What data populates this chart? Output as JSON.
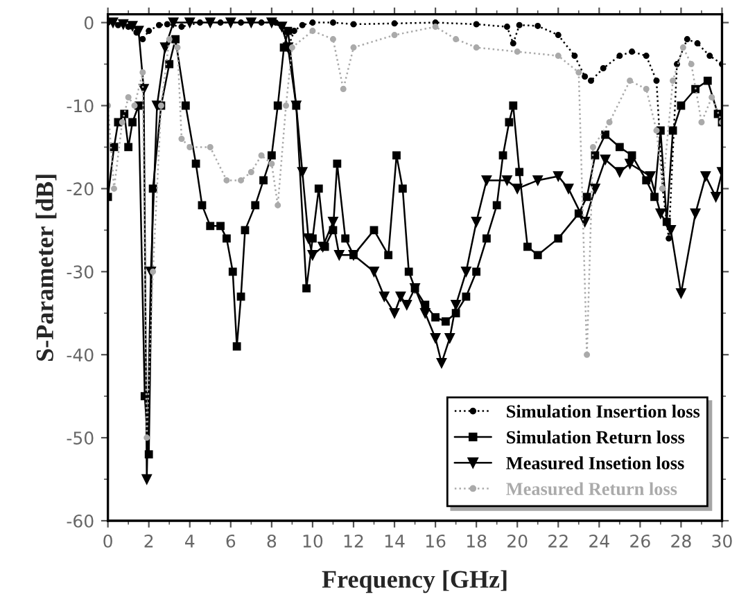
{
  "chart_data": {
    "type": "line",
    "xlabel": "Frequency [GHz]",
    "ylabel": "S-Parameter [dB]",
    "xlim": [
      0,
      30
    ],
    "xticks": [
      0,
      2,
      4,
      6,
      8,
      10,
      12,
      14,
      16,
      18,
      20,
      22,
      24,
      26,
      28,
      30
    ],
    "ylim": [
      -60,
      1
    ],
    "yticks": [
      -60,
      -50,
      -40,
      -30,
      -20,
      -10,
      0
    ],
    "grid": false,
    "legend": "bottom right",
    "line_style": "solid",
    "series": [
      {
        "name": "Simulation Insertion loss",
        "color": "#000000",
        "marker": "circle",
        "line_style": "dotted",
        "x": [
          0,
          0.5,
          1,
          1.4,
          1.7,
          2,
          2.5,
          2.9,
          3.6,
          4.5,
          5.5,
          6.5,
          7.5,
          8.2,
          8.5,
          8.8,
          9.1,
          9.5,
          10,
          11,
          12,
          14,
          16,
          18,
          19.5,
          19.8,
          20.1,
          21,
          22,
          22.8,
          23.3,
          23.6,
          24.2,
          25,
          25.6,
          26.3,
          26.8,
          27.1,
          27.4,
          27.8,
          28.3,
          28.8,
          29.4,
          30
        ],
        "values": [
          0,
          -0.3,
          -0.5,
          -1.2,
          -2,
          -1,
          -0.3,
          -0.2,
          -0.5,
          0,
          0,
          0,
          0,
          0,
          -0.5,
          -3,
          -1,
          -0.3,
          0,
          0,
          -0.2,
          -0.1,
          0,
          -0.2,
          -0.5,
          -2.5,
          -0.3,
          -0.4,
          -1.5,
          -4,
          -6.5,
          -7,
          -5.5,
          -4,
          -3.5,
          -4,
          -7,
          -20,
          -26,
          -5,
          -2,
          -2.5,
          -4,
          -5
        ]
      },
      {
        "name": "Simulation Return loss",
        "color": "#000000",
        "marker": "square",
        "x": [
          0,
          0.3,
          0.5,
          0.8,
          1,
          1.2,
          1.5,
          1.8,
          2,
          2.2,
          2.6,
          3,
          3.3,
          3.8,
          4.3,
          4.6,
          5,
          5.5,
          5.8,
          6.1,
          6.3,
          6.5,
          6.7,
          7.2,
          7.6,
          8,
          8.3,
          8.6,
          8.8,
          9.2,
          9.7,
          10,
          10.3,
          10.6,
          11,
          11.2,
          11.6,
          12,
          13,
          13.7,
          14.1,
          14.4,
          14.7,
          15,
          15.5,
          16,
          16.5,
          17,
          17.5,
          18,
          18.5,
          19,
          19.3,
          19.6,
          19.8,
          20.1,
          20.5,
          21,
          22,
          23,
          23.4,
          23.8,
          24.3,
          25,
          25.6,
          26.3,
          26.7,
          27,
          27.3,
          27.6,
          28,
          28.7,
          29.3,
          29.8,
          30
        ],
        "values": [
          -21,
          -15,
          -12,
          -11,
          -15,
          -12,
          -10,
          -45,
          -52,
          -20,
          -10,
          -5,
          -2,
          -10,
          -17,
          -22,
          -24.5,
          -24.5,
          -26,
          -30,
          -39,
          -33,
          -25,
          -22,
          -19,
          -16,
          -10,
          -3,
          -1,
          -10,
          -32,
          -26,
          -20,
          -27,
          -25,
          -17,
          -26,
          -28,
          -25,
          -28,
          -16,
          -20,
          -30,
          -32,
          -34,
          -35.5,
          -36,
          -35,
          -33,
          -30,
          -26,
          -22,
          -16,
          -12,
          -10,
          -18,
          -27,
          -28,
          -26,
          -23,
          -21,
          -16,
          -13.5,
          -15,
          -16,
          -19,
          -21,
          -13,
          -24,
          -13,
          -10,
          -8,
          -7,
          -11,
          -12
        ]
      },
      {
        "name": "Measured Insetion loss",
        "color": "#000000",
        "marker": "triangle",
        "x": [
          0.25,
          0.75,
          1.2,
          1.5,
          1.75,
          1.9,
          2.1,
          2.4,
          2.8,
          3.2,
          4,
          5,
          6,
          7,
          8,
          8.5,
          8.8,
          9.2,
          9.5,
          9.8,
          10,
          10.5,
          11,
          11.3,
          12,
          13,
          13.5,
          14,
          14.3,
          14.6,
          15,
          15.5,
          16,
          16.3,
          16.7,
          17,
          17.5,
          18,
          18.5,
          19.5,
          20,
          21,
          22,
          22.5,
          23.3,
          23.8,
          24.3,
          25,
          25.5,
          26.5,
          27,
          27.5,
          28,
          28.7,
          29.2,
          29.7,
          30
        ],
        "values": [
          0,
          -0.2,
          -0.4,
          -1,
          -8,
          -55,
          -30,
          -10,
          -3,
          0,
          0,
          0,
          0,
          0,
          0,
          -0.5,
          -3,
          -10,
          -18,
          -26,
          -28,
          -27,
          -24,
          -28,
          -28,
          -30,
          -33,
          -35,
          -33,
          -34,
          -32,
          -35,
          -38,
          -41,
          -38,
          -34,
          -30,
          -24,
          -19,
          -19,
          -20,
          -19,
          -18.5,
          -20,
          -24,
          -20,
          -16.5,
          -18,
          -17,
          -18.5,
          -23,
          -25,
          -32.6,
          -23,
          -18.5,
          -21,
          -18
        ]
      },
      {
        "name": "Measured Return loss",
        "color": "#aaaaaa",
        "marker": "circle",
        "line_style": "dotted",
        "x": [
          0,
          0.3,
          0.7,
          1,
          1.3,
          1.7,
          1.9,
          2.2,
          2.6,
          3,
          3.4,
          3.6,
          4,
          5,
          5.8,
          6.5,
          7,
          7.5,
          8,
          8.3,
          8.7,
          9,
          10,
          11,
          11.5,
          12,
          14,
          16,
          17,
          18,
          20,
          22,
          23,
          23.4,
          23.7,
          24.5,
          25.5,
          26.3,
          26.8,
          27.1,
          27.6,
          28.1,
          28.5,
          29,
          29.5,
          30
        ],
        "values": [
          -10,
          -20,
          -12,
          -9,
          -10,
          -6,
          -50,
          -30,
          -10,
          -2,
          -3,
          -14,
          -15,
          -15,
          -19,
          -19,
          -18,
          -16,
          -17,
          -22,
          -10,
          -3,
          -1,
          -2,
          -8,
          -3,
          -1.5,
          -0.5,
          -2,
          -3,
          -3.5,
          -4,
          -6,
          -40,
          -15,
          -12,
          -7,
          -8,
          -13,
          -20,
          -7,
          -3,
          -5,
          -12,
          -9,
          -12
        ]
      }
    ]
  }
}
